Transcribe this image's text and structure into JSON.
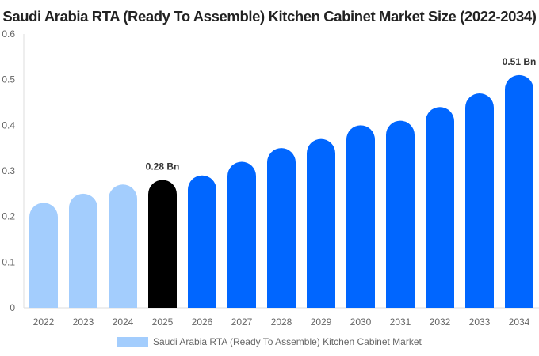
{
  "chart_data": {
    "type": "bar",
    "title": "Saudi Arabia RTA (Ready To Assemble) Kitchen Cabinet Market Size (2022-2034)",
    "categories": [
      "2022",
      "2023",
      "2024",
      "2025",
      "2026",
      "2027",
      "2028",
      "2029",
      "2030",
      "2031",
      "2032",
      "2033",
      "2034"
    ],
    "series": [
      {
        "name": "Saudi Arabia RTA (Ready To Assemble) Kitchen Cabinet Market",
        "values": [
          0.23,
          0.25,
          0.27,
          0.28,
          0.29,
          0.32,
          0.35,
          0.37,
          0.4,
          0.41,
          0.44,
          0.47,
          0.51
        ]
      }
    ],
    "data_labels": [
      {
        "category": "2025",
        "text": "0.28 Bn"
      },
      {
        "category": "2034",
        "text": "0.51 Bn"
      }
    ],
    "yticks": [
      "0",
      "0.1",
      "0.2",
      "0.3",
      "0.4",
      "0.5",
      "0.6"
    ],
    "ylim": [
      0,
      0.6
    ],
    "grid": false,
    "legend": "bottom",
    "colors": {
      "historical": "#a3cdfd",
      "base_year": "#000000",
      "forecast": "#0066ff"
    },
    "color_groups": [
      "historical",
      "historical",
      "historical",
      "base_year",
      "forecast",
      "forecast",
      "forecast",
      "forecast",
      "forecast",
      "forecast",
      "forecast",
      "forecast",
      "forecast"
    ]
  }
}
